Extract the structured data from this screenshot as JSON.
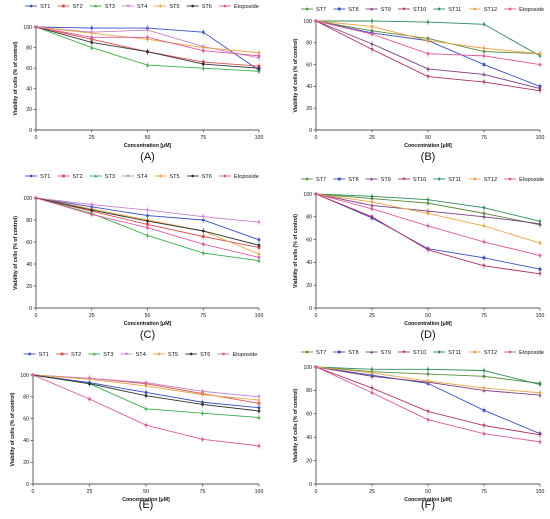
{
  "chart_data": [
    {
      "type": "line",
      "panel_label": "(A)",
      "xlabel": "Concentration [μM]",
      "ylabel": "Viability of cells (% of control)",
      "xlim": [
        0,
        100
      ],
      "ylim": [
        0,
        100
      ],
      "x_ticks": [
        "0",
        "25",
        "50",
        "75",
        "100"
      ],
      "y_ticks": [
        "0",
        "20",
        "40",
        "60",
        "80",
        "100"
      ],
      "legend_placement": "top",
      "x": [
        0,
        25,
        50,
        75,
        100
      ],
      "series": [
        {
          "name": "ST1",
          "color": "#3b4fc4",
          "marker": "circle",
          "values": [
            100,
            99,
            99,
            95,
            58
          ]
        },
        {
          "name": "ST2",
          "color": "#d9534f",
          "marker": "square",
          "values": [
            100,
            88,
            76,
            66,
            62
          ]
        },
        {
          "name": "ST3",
          "color": "#3aae4a",
          "marker": "triangle",
          "values": [
            100,
            80,
            63,
            60,
            57
          ]
        },
        {
          "name": "ST4",
          "color": "#c77fc9",
          "marker": "triangle-down",
          "values": [
            100,
            95,
            97,
            81,
            70
          ]
        },
        {
          "name": "ST5",
          "color": "#e8a64a",
          "marker": "diamond",
          "values": [
            100,
            94,
            88,
            80,
            75
          ]
        },
        {
          "name": "ST6",
          "color": "#333333",
          "marker": "circle",
          "values": [
            100,
            85,
            76,
            64,
            60
          ]
        },
        {
          "name": "Etoposide",
          "color": "#e05a9a",
          "marker": "circle",
          "values": [
            100,
            90,
            90,
            77,
            72
          ]
        }
      ]
    },
    {
      "type": "line",
      "panel_label": "(B)",
      "xlabel": "Concentration [μM]",
      "ylabel": "Viability of cells (% of control)",
      "xlim": [
        0,
        100
      ],
      "ylim": [
        0,
        100
      ],
      "x_ticks": [
        "0",
        "25",
        "50",
        "75",
        "100"
      ],
      "y_ticks": [
        "0",
        "20",
        "40",
        "60",
        "80",
        "100"
      ],
      "legend_placement": "top",
      "x": [
        0,
        25,
        50,
        75,
        100
      ],
      "series": [
        {
          "name": "ST7",
          "color": "#5a8c3a",
          "marker": "circle",
          "values": [
            100,
            91,
            84,
            72,
            70
          ]
        },
        {
          "name": "ST8",
          "color": "#3b4fc4",
          "marker": "square",
          "values": [
            100,
            89,
            82,
            60,
            40
          ]
        },
        {
          "name": "ST9",
          "color": "#7b3f7f",
          "marker": "triangle",
          "values": [
            100,
            79,
            56,
            51,
            38
          ]
        },
        {
          "name": "ST10",
          "color": "#b03060",
          "marker": "triangle-down",
          "values": [
            100,
            74,
            49,
            44,
            36
          ]
        },
        {
          "name": "ST11",
          "color": "#2e8b57",
          "marker": "diamond",
          "values": [
            100,
            100,
            99,
            97,
            68
          ]
        },
        {
          "name": "ST12",
          "color": "#e8a64a",
          "marker": "circle",
          "values": [
            100,
            95,
            82,
            75,
            70
          ]
        },
        {
          "name": "Etoposide",
          "color": "#e05a9a",
          "marker": "circle",
          "values": [
            100,
            88,
            70,
            68,
            60
          ]
        }
      ]
    },
    {
      "type": "line",
      "panel_label": "(C)",
      "xlabel": "Concentration [μM]",
      "ylabel": "Viability of cells (% of control)",
      "xlim": [
        0,
        100
      ],
      "ylim": [
        0,
        100
      ],
      "x_ticks": [
        "0",
        "25",
        "50",
        "75",
        "100"
      ],
      "y_ticks": [
        "0",
        "20",
        "40",
        "60",
        "80",
        "100"
      ],
      "legend_placement": "top",
      "x": [
        0,
        25,
        50,
        75,
        100
      ],
      "series": [
        {
          "name": "ST1",
          "color": "#3b4fc4",
          "marker": "circle",
          "values": [
            100,
            92,
            84,
            80,
            62
          ]
        },
        {
          "name": "ST2",
          "color": "#d9534f",
          "marker": "square",
          "values": [
            100,
            88,
            76,
            65,
            55
          ]
        },
        {
          "name": "ST3",
          "color": "#3aae4a",
          "marker": "triangle",
          "values": [
            100,
            86,
            66,
            50,
            43
          ]
        },
        {
          "name": "ST4",
          "color": "#c77fc9",
          "marker": "triangle-down",
          "values": [
            100,
            94,
            89,
            83,
            78
          ]
        },
        {
          "name": "ST5",
          "color": "#e8a64a",
          "marker": "diamond",
          "values": [
            100,
            90,
            80,
            70,
            49
          ]
        },
        {
          "name": "ST6",
          "color": "#333333",
          "marker": "circle",
          "values": [
            100,
            89,
            79,
            70,
            57
          ]
        },
        {
          "name": "Etoposide",
          "color": "#e05a9a",
          "marker": "circle",
          "values": [
            100,
            85,
            73,
            58,
            46
          ]
        }
      ]
    },
    {
      "type": "line",
      "panel_label": "(D)",
      "xlabel": "Concentration [μM]",
      "ylabel": "Viability of cells (% of control)",
      "xlim": [
        0,
        100
      ],
      "ylim": [
        0,
        100
      ],
      "x_ticks": [
        "0",
        "25",
        "50",
        "75",
        "100"
      ],
      "y_ticks": [
        "0",
        "20",
        "40",
        "60",
        "80",
        "100"
      ],
      "legend_placement": "top",
      "x": [
        0,
        25,
        50,
        75,
        100
      ],
      "series": [
        {
          "name": "ST7",
          "color": "#5a8c3a",
          "marker": "circle",
          "values": [
            100,
            96,
            92,
            83,
            73
          ]
        },
        {
          "name": "ST8",
          "color": "#3b4fc4",
          "marker": "square",
          "values": [
            100,
            79,
            52,
            44,
            34
          ]
        },
        {
          "name": "ST9",
          "color": "#7b3f7f",
          "marker": "triangle",
          "values": [
            100,
            90,
            85,
            80,
            74
          ]
        },
        {
          "name": "ST10",
          "color": "#b03060",
          "marker": "triangle-down",
          "values": [
            100,
            80,
            51,
            37,
            30
          ]
        },
        {
          "name": "ST11",
          "color": "#2e8b57",
          "marker": "diamond",
          "values": [
            100,
            98,
            95,
            88,
            76
          ]
        },
        {
          "name": "ST12",
          "color": "#e8a64a",
          "marker": "circle",
          "values": [
            100,
            93,
            83,
            72,
            57
          ]
        },
        {
          "name": "Etoposide",
          "color": "#e05a9a",
          "marker": "circle",
          "values": [
            100,
            87,
            72,
            58,
            46
          ]
        }
      ]
    },
    {
      "type": "line",
      "panel_label": "(E)",
      "xlabel": "Concentration [μM]",
      "ylabel": "Viability of cells (% of control)",
      "xlim": [
        0,
        100
      ],
      "ylim": [
        0,
        100
      ],
      "x_ticks": [
        "0",
        "25",
        "50",
        "75",
        "100"
      ],
      "y_ticks": [
        "0",
        "20",
        "40",
        "60",
        "80",
        "100"
      ],
      "legend_placement": "top",
      "x": [
        0,
        25,
        50,
        75,
        100
      ],
      "series": [
        {
          "name": "ST1",
          "color": "#3b4fc4",
          "marker": "circle",
          "values": [
            100,
            93,
            84,
            75,
            70
          ]
        },
        {
          "name": "ST2",
          "color": "#d9534f",
          "marker": "square",
          "values": [
            100,
            97,
            92,
            83,
            74
          ]
        },
        {
          "name": "ST3",
          "color": "#3aae4a",
          "marker": "triangle",
          "values": [
            100,
            92,
            69,
            65,
            61
          ]
        },
        {
          "name": "ST4",
          "color": "#c77fc9",
          "marker": "triangle-down",
          "values": [
            100,
            97,
            93,
            85,
            80
          ]
        },
        {
          "name": "ST5",
          "color": "#e8a64a",
          "marker": "diamond",
          "values": [
            100,
            96,
            90,
            82,
            77
          ]
        },
        {
          "name": "ST6",
          "color": "#333333",
          "marker": "circle",
          "values": [
            100,
            92,
            81,
            73,
            67
          ]
        },
        {
          "name": "Etoposide",
          "color": "#e05a9a",
          "marker": "circle",
          "values": [
            100,
            78,
            54,
            41,
            35
          ]
        }
      ]
    },
    {
      "type": "line",
      "panel_label": "(F)",
      "xlabel": "Concentration [μM]",
      "ylabel": "Viability of cells (% of control)",
      "xlim": [
        0,
        100
      ],
      "ylim": [
        0,
        100
      ],
      "x_ticks": [
        "0",
        "25",
        "50",
        "75",
        "100"
      ],
      "y_ticks": [
        "0",
        "20",
        "40",
        "60",
        "80",
        "100"
      ],
      "legend_placement": "top",
      "x": [
        0,
        25,
        50,
        75,
        100
      ],
      "series": [
        {
          "name": "ST7",
          "color": "#5a8c3a",
          "marker": "circle",
          "values": [
            100,
            96,
            94,
            92,
            86
          ]
        },
        {
          "name": "ST8",
          "color": "#3b4fc4",
          "marker": "square",
          "values": [
            100,
            93,
            86,
            63,
            43
          ]
        },
        {
          "name": "ST9",
          "color": "#7b3f7f",
          "marker": "triangle",
          "values": [
            100,
            92,
            87,
            80,
            76
          ]
        },
        {
          "name": "ST10",
          "color": "#b03060",
          "marker": "triangle-down",
          "values": [
            100,
            82,
            62,
            50,
            42
          ]
        },
        {
          "name": "ST11",
          "color": "#2e8b57",
          "marker": "diamond",
          "values": [
            100,
            98,
            98,
            97,
            85
          ]
        },
        {
          "name": "ST12",
          "color": "#e8a64a",
          "marker": "circle",
          "values": [
            100,
            95,
            88,
            82,
            78
          ]
        },
        {
          "name": "Etoposide",
          "color": "#e05a9a",
          "marker": "circle",
          "values": [
            100,
            78,
            55,
            43,
            36
          ]
        }
      ]
    }
  ]
}
